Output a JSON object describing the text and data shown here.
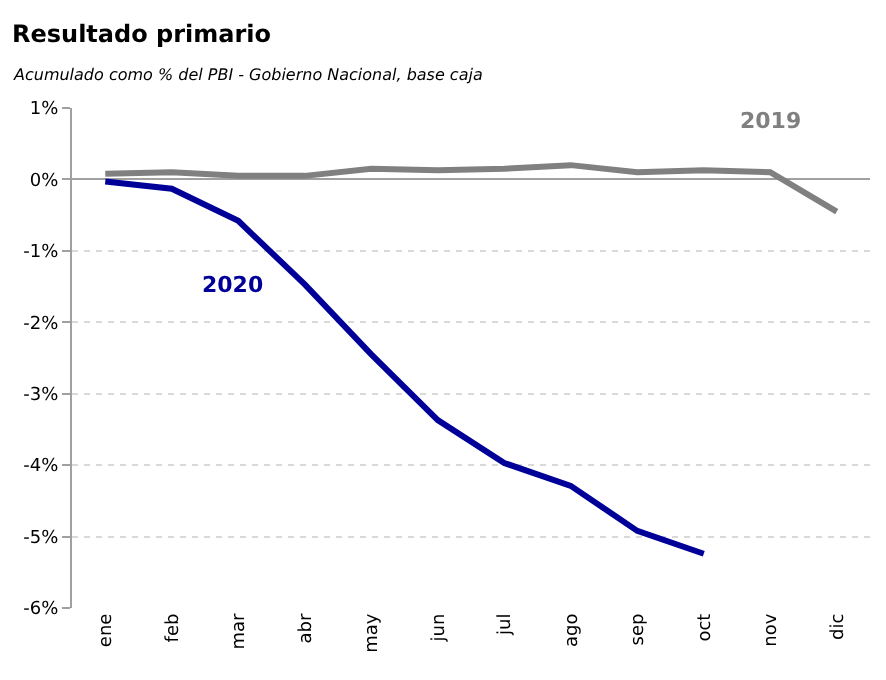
{
  "chart_data": {
    "type": "line",
    "title": "Resultado primario",
    "subtitle": "Acumulado como % del PBI - Gobierno Nacional, base caja",
    "categories": [
      "ene",
      "feb",
      "mar",
      "abr",
      "may",
      "jun",
      "jul",
      "ago",
      "sep",
      "oct",
      "nov",
      "dic"
    ],
    "series": [
      {
        "name": "2019",
        "color": "#808080",
        "values": [
          0.08,
          0.1,
          0.05,
          0.05,
          0.15,
          0.13,
          0.15,
          0.2,
          0.1,
          0.13,
          0.1,
          -0.45
        ]
      },
      {
        "name": "2020",
        "color": "#000099",
        "values": [
          -0.03,
          -0.13,
          -0.58,
          -1.47,
          -2.45,
          -3.37,
          -3.97,
          -4.29,
          -4.92,
          -5.24,
          null,
          null
        ]
      }
    ],
    "ylim": [
      -6,
      1
    ],
    "yticks": [
      {
        "value": -6,
        "label": "-6%"
      },
      {
        "value": -5,
        "label": "-5%"
      },
      {
        "value": -4,
        "label": "-4%"
      },
      {
        "value": -3,
        "label": "-3%"
      },
      {
        "value": -2,
        "label": "-2%"
      },
      {
        "value": -1,
        "label": "-1%"
      },
      {
        "value": 0,
        "label": "0%"
      },
      {
        "value": 1,
        "label": "1%"
      }
    ],
    "grid": "y",
    "legend": false,
    "marker": "none",
    "line_style": "solid"
  }
}
